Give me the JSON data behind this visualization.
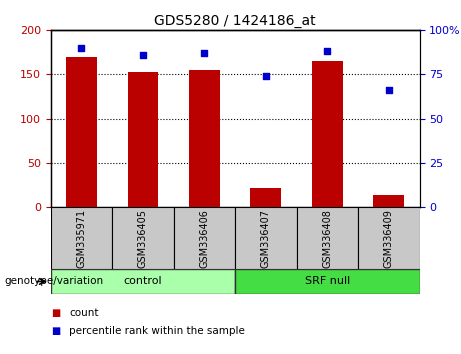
{
  "title": "GDS5280 / 1424186_at",
  "samples": [
    "GSM335971",
    "GSM336405",
    "GSM336406",
    "GSM336407",
    "GSM336408",
    "GSM336409"
  ],
  "counts": [
    170,
    153,
    155,
    22,
    165,
    14
  ],
  "percentiles": [
    90,
    86,
    87,
    74,
    88,
    66
  ],
  "groups": [
    "control",
    "control",
    "control",
    "SRF null",
    "SRF null",
    "SRF null"
  ],
  "bar_color": "#BB0000",
  "dot_color": "#0000CC",
  "left_ylim": [
    0,
    200
  ],
  "right_ylim": [
    0,
    100
  ],
  "left_yticks": [
    0,
    50,
    100,
    150,
    200
  ],
  "right_yticks": [
    0,
    25,
    50,
    75,
    100
  ],
  "left_yticklabels": [
    "0",
    "50",
    "100",
    "150",
    "200"
  ],
  "right_yticklabels": [
    "0",
    "25",
    "50",
    "75",
    "100%"
  ],
  "gridlines": [
    50,
    100,
    150
  ],
  "legend_count_label": "count",
  "legend_pct_label": "percentile rank within the sample",
  "genotype_label": "genotype/variation",
  "label_bg": "#C8C8C8",
  "control_color": "#AAFFAA",
  "srf_color": "#44DD44",
  "plot_bg": "#FFFFFF",
  "bar_width": 0.5
}
